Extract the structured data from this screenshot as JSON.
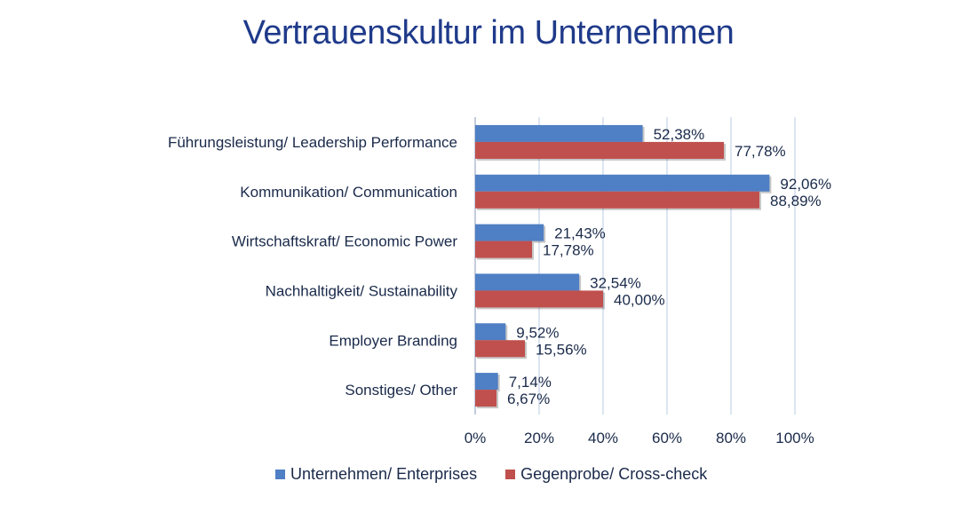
{
  "title": "Vertrauenskultur im Unternehmen",
  "colors": {
    "enterprises": "#4f7fc4",
    "crosscheck": "#c0504d",
    "text": "#1a2a4a",
    "title": "#1f3a8a",
    "grid": "#b9cbe6"
  },
  "chart_data": {
    "type": "bar",
    "orientation": "horizontal",
    "title": "Vertrauenskultur im Unternehmen",
    "categories": [
      "Führungsleistung/ Leadership Performance",
      "Kommunikation/ Communication",
      "Wirtschaftskraft/ Economic Power",
      "Nachhaltigkeit/ Sustainability",
      "Employer Branding",
      "Sonstiges/ Other"
    ],
    "series": [
      {
        "name": "Unternehmen/ Enterprises",
        "values": [
          52.38,
          92.06,
          21.43,
          32.54,
          9.52,
          7.14
        ],
        "labels": [
          "52,38%",
          "92,06%",
          "21,43%",
          "32,54%",
          "9,52%",
          "7,14%"
        ]
      },
      {
        "name": "Gegenprobe/ Cross-check",
        "values": [
          77.78,
          88.89,
          17.78,
          40.0,
          15.56,
          6.67
        ],
        "labels": [
          "77,78%",
          "88,89%",
          "17,78%",
          "40,00%",
          "15,56%",
          "6,67%"
        ]
      }
    ],
    "xlim": [
      0,
      100
    ],
    "xticks": [
      "0%",
      "20%",
      "40%",
      "60%",
      "80%",
      "100%"
    ],
    "xtick_values": [
      0,
      20,
      40,
      60,
      80,
      100
    ],
    "grid": true,
    "legend_position": "bottom"
  }
}
